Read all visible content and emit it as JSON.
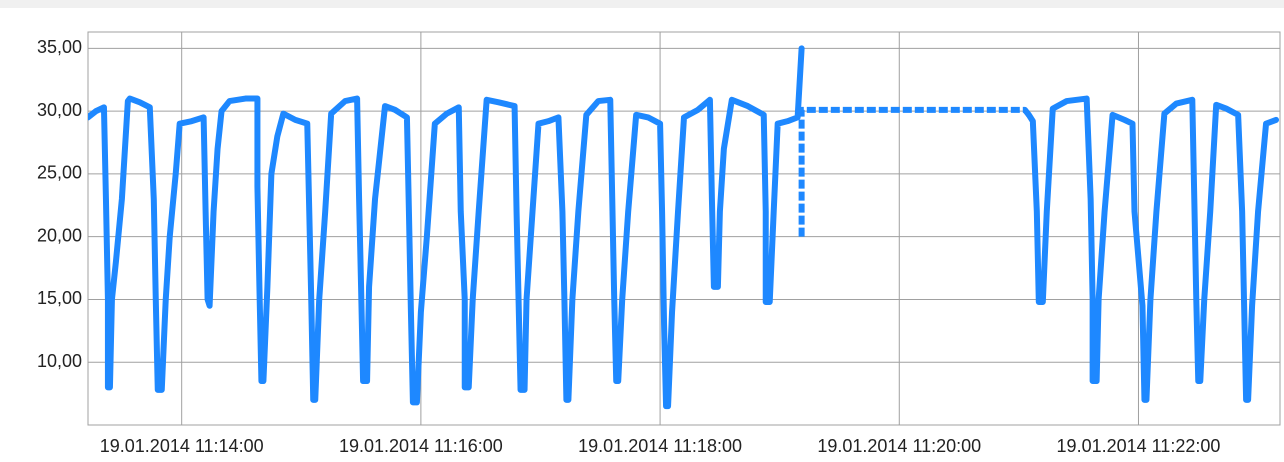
{
  "chart_data": {
    "type": "line",
    "xlim": [
      "19.01.2014 11:13:13",
      "19.01.2014 11:23:11"
    ],
    "xticks": [
      "19.01.2014 11:14:00",
      "19.01.2014 11:16:00",
      "19.01.2014 11:18:00",
      "19.01.2014 11:20:00",
      "19.01.2014 11:22:00"
    ],
    "ylim": [
      5,
      36.3
    ],
    "yticks": [
      {
        "value": 10,
        "label": "10,00"
      },
      {
        "value": 15,
        "label": "15,00"
      },
      {
        "value": 20,
        "label": "20,00"
      },
      {
        "value": 25,
        "label": "25,00"
      },
      {
        "value": 30,
        "label": "30,00"
      },
      {
        "value": 35,
        "label": "35,00"
      }
    ],
    "grid": true,
    "series": [
      {
        "color": "#1e88ff",
        "line_style": "solid",
        "x": [
          "19.01.2014 11:13:13",
          "19.01.2014 11:13:17",
          "19.01.2014 11:13:21",
          "19.01.2014 11:13:22",
          "19.01.2014 11:13:23",
          "19.01.2014 11:13:23",
          "19.01.2014 11:13:24",
          "19.01.2014 11:13:25",
          "19.01.2014 11:13:27",
          "19.01.2014 11:13:30",
          "19.01.2014 11:13:33",
          "19.01.2014 11:13:34",
          "19.01.2014 11:13:39",
          "19.01.2014 11:13:44",
          "19.01.2014 11:13:46",
          "19.01.2014 11:13:47",
          "19.01.2014 11:13:48",
          "19.01.2014 11:13:50",
          "19.01.2014 11:13:52",
          "19.01.2014 11:13:54",
          "19.01.2014 11:13:57",
          "19.01.2014 11:13:59",
          "19.01.2014 11:14:05",
          "19.01.2014 11:14:11",
          "19.01.2014 11:14:12",
          "19.01.2014 11:14:13",
          "19.01.2014 11:14:14",
          "19.01.2014 11:14:16",
          "19.01.2014 11:14:18",
          "19.01.2014 11:14:20",
          "19.01.2014 11:14:24",
          "19.01.2014 11:14:32",
          "19.01.2014 11:14:38",
          "19.01.2014 11:14:38",
          "19.01.2014 11:14:39",
          "19.01.2014 11:14:40",
          "19.01.2014 11:14:41",
          "19.01.2014 11:14:43",
          "19.01.2014 11:14:45",
          "19.01.2014 11:14:48",
          "19.01.2014 11:14:51",
          "19.01.2014 11:14:57",
          "19.01.2014 11:15:03",
          "19.01.2014 11:15:04",
          "19.01.2014 11:15:05",
          "19.01.2014 11:15:06",
          "19.01.2014 11:15:07",
          "19.01.2014 11:15:09",
          "19.01.2014 11:15:12",
          "19.01.2014 11:15:15",
          "19.01.2014 11:15:22",
          "19.01.2014 11:15:28",
          "19.01.2014 11:15:29",
          "19.01.2014 11:15:30",
          "19.01.2014 11:15:31",
          "19.01.2014 11:15:33",
          "19.01.2014 11:15:34",
          "19.01.2014 11:15:37",
          "19.01.2014 11:15:42",
          "19.01.2014 11:15:47",
          "19.01.2014 11:15:53",
          "19.01.2014 11:15:54",
          "19.01.2014 11:15:55",
          "19.01.2014 11:15:56",
          "19.01.2014 11:15:58",
          "19.01.2014 11:16:00",
          "19.01.2014 11:16:03",
          "19.01.2014 11:16:07",
          "19.01.2014 11:16:13",
          "19.01.2014 11:16:19",
          "19.01.2014 11:16:20",
          "19.01.2014 11:16:22",
          "19.01.2014 11:16:22",
          "19.01.2014 11:16:24",
          "19.01.2014 11:16:26",
          "19.01.2014 11:16:29",
          "19.01.2014 11:16:33",
          "19.01.2014 11:16:39",
          "19.01.2014 11:16:47",
          "19.01.2014 11:16:48",
          "19.01.2014 11:16:49",
          "19.01.2014 11:16:50",
          "19.01.2014 11:16:52",
          "19.01.2014 11:16:53",
          "19.01.2014 11:16:56",
          "19.01.2014 11:16:59",
          "19.01.2014 11:17:04",
          "19.01.2014 11:17:09",
          "19.01.2014 11:17:11",
          "19.01.2014 11:17:12",
          "19.01.2014 11:17:13",
          "19.01.2014 11:17:14",
          "19.01.2014 11:17:16",
          "19.01.2014 11:17:19",
          "19.01.2014 11:17:23",
          "19.01.2014 11:17:29",
          "19.01.2014 11:17:35",
          "19.01.2014 11:17:36",
          "19.01.2014 11:17:37",
          "19.01.2014 11:17:38",
          "19.01.2014 11:17:39",
          "19.01.2014 11:17:41",
          "19.01.2014 11:17:44",
          "19.01.2014 11:17:48",
          "19.01.2014 11:17:54",
          "19.01.2014 11:18:00",
          "19.01.2014 11:18:01",
          "19.01.2014 11:18:02",
          "19.01.2014 11:18:03",
          "19.01.2014 11:18:04",
          "19.01.2014 11:18:06",
          "19.01.2014 11:18:09",
          "19.01.2014 11:18:12",
          "19.01.2014 11:18:19",
          "19.01.2014 11:18:25",
          "19.01.2014 11:18:26",
          "19.01.2014 11:18:27",
          "19.01.2014 11:18:29",
          "19.01.2014 11:18:30",
          "19.01.2014 11:18:32",
          "19.01.2014 11:18:36",
          "19.01.2014 11:18:44",
          "19.01.2014 11:18:52",
          "19.01.2014 11:18:53",
          "19.01.2014 11:18:53",
          "19.01.2014 11:18:55",
          "19.01.2014 11:18:57",
          "19.01.2014 11:18:59",
          "19.01.2014 11:19:04",
          "19.01.2014 11:19:09",
          "19.01.2014 11:19:11"
        ],
        "values": [
          29.5,
          30,
          30.3,
          23,
          15,
          8,
          8,
          15,
          18,
          23,
          30.8,
          31,
          30.7,
          30.3,
          23,
          15,
          7.8,
          7.8,
          15,
          20,
          25,
          29,
          29.2,
          29.5,
          22,
          15,
          14.5,
          22,
          27,
          30,
          30.8,
          31,
          31,
          24,
          16,
          8.5,
          8.5,
          16,
          25,
          28,
          29.8,
          29.3,
          29,
          22,
          15,
          7,
          7,
          15,
          22,
          29.8,
          30.8,
          31,
          23,
          16,
          8.5,
          8.5,
          16,
          23,
          30.4,
          30.1,
          29.5,
          22,
          14,
          6.8,
          6.8,
          14,
          20,
          29,
          29.8,
          30.3,
          22,
          15,
          8,
          8,
          15,
          22,
          30.9,
          30.7,
          30.4,
          22,
          15,
          7.8,
          7.8,
          15,
          22,
          29,
          29.2,
          29.5,
          22,
          15,
          7,
          7,
          15,
          22,
          29.7,
          30.8,
          30.9,
          23,
          15,
          8.5,
          8.5,
          15,
          22,
          29.7,
          29.5,
          29,
          22,
          13,
          6.5,
          6.5,
          14,
          22,
          29.5,
          30.1,
          30.9,
          23,
          16,
          16,
          22,
          27,
          30.9,
          30.4,
          29.7,
          22,
          14.8,
          14.8,
          22,
          29,
          29.2,
          29.5,
          35
        ]
      },
      {
        "color": "#1e88ff",
        "line_style": "dashed",
        "x": [
          "19.01.2014 11:19:11",
          "19.01.2014 11:19:11",
          "19.01.2014 11:21:03",
          "19.01.2014 11:21:05"
        ],
        "values": [
          20,
          30.1,
          30.1,
          29.7
        ]
      },
      {
        "color": "#1e88ff",
        "line_style": "solid",
        "x": [
          "19.01.2014 11:21:05",
          "19.01.2014 11:21:07",
          "19.01.2014 11:21:09",
          "19.01.2014 11:21:10",
          "19.01.2014 11:21:12",
          "19.01.2014 11:21:14",
          "19.01.2014 11:21:17",
          "19.01.2014 11:21:24",
          "19.01.2014 11:21:34",
          "19.01.2014 11:21:36",
          "19.01.2014 11:21:37",
          "19.01.2014 11:21:37",
          "19.01.2014 11:21:39",
          "19.01.2014 11:21:40",
          "19.01.2014 11:21:43",
          "19.01.2014 11:21:47",
          "19.01.2014 11:21:53",
          "19.01.2014 11:21:57",
          "19.01.2014 11:21:58",
          "19.01.2014 11:22:02",
          "19.01.2014 11:22:03",
          "19.01.2014 11:22:04",
          "19.01.2014 11:22:06",
          "19.01.2014 11:22:09",
          "19.01.2014 11:22:13",
          "19.01.2014 11:22:19",
          "19.01.2014 11:22:27",
          "19.01.2014 11:22:28",
          "19.01.2014 11:22:29",
          "19.01.2014 11:22:30",
          "19.01.2014 11:22:31",
          "19.01.2014 11:22:33",
          "19.01.2014 11:22:36",
          "19.01.2014 11:22:39",
          "19.01.2014 11:22:44",
          "19.01.2014 11:22:50",
          "19.01.2014 11:22:52",
          "19.01.2014 11:22:53",
          "19.01.2014 11:22:54",
          "19.01.2014 11:22:55",
          "19.01.2014 11:22:57",
          "19.01.2014 11:23:00",
          "19.01.2014 11:23:04",
          "19.01.2014 11:23:09"
        ],
        "values": [
          29.7,
          29.2,
          22,
          14.8,
          14.8,
          22,
          30.2,
          30.8,
          31,
          23,
          15,
          8.5,
          8.5,
          15,
          22,
          29.7,
          29.3,
          29,
          22,
          14.5,
          7,
          7,
          15,
          22,
          29.8,
          30.6,
          30.9,
          23,
          15,
          8.5,
          8.5,
          15,
          22,
          30.5,
          30.2,
          29.7,
          22,
          14.5,
          7,
          7,
          14.5,
          22,
          29,
          29.3
        ]
      }
    ]
  }
}
